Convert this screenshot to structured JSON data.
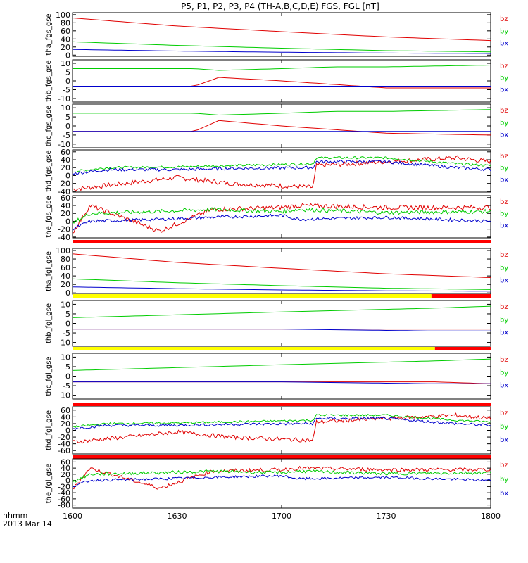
{
  "title": "P5, P1, P2, P3, P4 (TH-A,B,C,D,E) FGS, FGL [nT]",
  "x_axis": {
    "ticks": [
      {
        "label": "1600",
        "t": 0
      },
      {
        "label": "1630",
        "t": 30
      },
      {
        "label": "1700",
        "t": 60
      },
      {
        "label": "1730",
        "t": 90
      },
      {
        "label": "1800",
        "t": 120
      }
    ],
    "unit_label": "hhmm",
    "date_label": "2013 Mar 14"
  },
  "colors": {
    "bz": "#e00000",
    "by": "#00cc00",
    "bx": "#0000cc",
    "flag_red": "#ff0000",
    "flag_yellow": "#ffff00"
  },
  "chart_data": [
    {
      "type": "line",
      "ylabel": "tha_fgs_gse",
      "ylim": [
        -3,
        105
      ],
      "yticks": [
        0,
        20,
        40,
        60,
        80,
        100
      ],
      "legend": [
        "bz",
        "by",
        "bx"
      ],
      "x": [
        0,
        30,
        60,
        90,
        120
      ],
      "series": [
        {
          "name": "bz",
          "values": [
            92,
            72,
            58,
            45,
            36
          ]
        },
        {
          "name": "by",
          "values": [
            33,
            24,
            17,
            11,
            8
          ]
        },
        {
          "name": "bx",
          "values": [
            14,
            10,
            7,
            5,
            4
          ]
        }
      ],
      "flag_bar": null
    },
    {
      "type": "line",
      "ylabel": "thb_fgs_gse",
      "ylim": [
        -12,
        12
      ],
      "yticks": [
        -10,
        -5,
        0,
        5,
        10
      ],
      "legend": [
        "bz",
        "by",
        "bx"
      ],
      "x": [
        0,
        35,
        42,
        60,
        75,
        90,
        120
      ],
      "series": [
        {
          "name": "bz",
          "values": [
            -3,
            -3,
            2,
            0,
            -2,
            -4,
            -4
          ]
        },
        {
          "name": "by",
          "values": [
            7,
            7,
            6,
            7,
            8,
            8,
            9
          ]
        },
        {
          "name": "bx",
          "values": [
            -3,
            -3,
            -3,
            -3,
            -3,
            -3,
            -3
          ]
        }
      ],
      "flag_bar": null
    },
    {
      "type": "line",
      "ylabel": "thc_fgs_gse",
      "ylim": [
        -12,
        12
      ],
      "yticks": [
        -10,
        -5,
        0,
        5,
        10
      ],
      "legend": [
        "bz",
        "by",
        "bx"
      ],
      "x": [
        0,
        35,
        42,
        60,
        75,
        90,
        120
      ],
      "series": [
        {
          "name": "bz",
          "values": [
            -3,
            -3,
            3,
            0,
            -2,
            -4,
            -5
          ]
        },
        {
          "name": "by",
          "values": [
            7,
            7,
            6,
            7,
            8,
            8,
            9
          ]
        },
        {
          "name": "bx",
          "values": [
            -3,
            -3,
            -3,
            -3,
            -3,
            -3,
            -3
          ]
        }
      ],
      "flag_bar": null
    },
    {
      "type": "line",
      "ylabel": "thd_fgs_gse",
      "ylim": [
        -42,
        65
      ],
      "yticks": [
        -40,
        -20,
        0,
        20,
        40,
        60
      ],
      "legend": [
        "bz",
        "by",
        "bx"
      ],
      "x": [
        0,
        10,
        30,
        45,
        69,
        70,
        90,
        110,
        120
      ],
      "series": [
        {
          "name": "bz",
          "values": [
            -35,
            -25,
            -5,
            -20,
            -30,
            25,
            35,
            45,
            35
          ],
          "noise": 6
        },
        {
          "name": "by",
          "values": [
            10,
            20,
            22,
            25,
            30,
            45,
            45,
            30,
            25
          ],
          "noise": 3
        },
        {
          "name": "bx",
          "values": [
            5,
            15,
            15,
            18,
            20,
            35,
            35,
            20,
            15
          ],
          "noise": 4
        }
      ],
      "flag_bar": null
    },
    {
      "type": "line",
      "ylabel": "the_fgs_gse",
      "ylim": [
        -42,
        65
      ],
      "yticks": [
        -40,
        -20,
        0,
        20,
        40,
        60
      ],
      "legend": [
        "bz",
        "by",
        "bx"
      ],
      "x": [
        0,
        5,
        25,
        40,
        60,
        65,
        90,
        120
      ],
      "series": [
        {
          "name": "bz",
          "values": [
            -30,
            40,
            -25,
            30,
            35,
            40,
            35,
            35
          ],
          "noise": 6
        },
        {
          "name": "by",
          "values": [
            -5,
            20,
            25,
            30,
            25,
            30,
            22,
            25
          ],
          "noise": 5
        },
        {
          "name": "bx",
          "values": [
            -20,
            0,
            5,
            10,
            15,
            5,
            10,
            0
          ],
          "noise": 4
        }
      ],
      "flag_bar": [
        {
          "from": 0,
          "to": 120,
          "color": "flag_red"
        }
      ]
    },
    {
      "type": "line",
      "ylabel": "tha_fgl_gse",
      "ylim": [
        -3,
        105
      ],
      "yticks": [
        0,
        20,
        40,
        60,
        80,
        100
      ],
      "legend": [
        "bz",
        "by",
        "bx"
      ],
      "x": [
        0,
        30,
        60,
        90,
        120
      ],
      "series": [
        {
          "name": "bz",
          "values": [
            92,
            72,
            58,
            45,
            36
          ]
        },
        {
          "name": "by",
          "values": [
            33,
            24,
            17,
            11,
            8
          ]
        },
        {
          "name": "bx",
          "values": [
            14,
            10,
            7,
            5,
            4
          ]
        }
      ],
      "flag_bar": [
        {
          "from": 0,
          "to": 103,
          "color": "flag_yellow"
        },
        {
          "from": 103,
          "to": 120,
          "color": "flag_red"
        }
      ]
    },
    {
      "type": "line",
      "ylabel": "thb_fgl_gse",
      "ylim": [
        -12,
        12
      ],
      "yticks": [
        -10,
        -5,
        0,
        5,
        10
      ],
      "legend": [
        "bz",
        "by",
        "bx"
      ],
      "x": [
        0,
        60,
        104,
        120
      ],
      "series": [
        {
          "name": "bz",
          "values": [
            -3,
            -3,
            -3,
            -3
          ]
        },
        {
          "name": "by",
          "values": [
            3,
            6,
            8,
            9
          ]
        },
        {
          "name": "bx",
          "values": [
            -3,
            -3,
            -4,
            -4
          ]
        }
      ],
      "flag_bar": [
        {
          "from": 0,
          "to": 104,
          "color": "flag_yellow"
        },
        {
          "from": 104,
          "to": 120,
          "color": "flag_red"
        }
      ]
    },
    {
      "type": "line",
      "ylabel": "thc_fgl_gse",
      "ylim": [
        -12,
        12
      ],
      "yticks": [
        -10,
        -5,
        0,
        5,
        10
      ],
      "legend": [
        "bz",
        "by",
        "bx"
      ],
      "x": [
        0,
        60,
        104,
        120
      ],
      "series": [
        {
          "name": "bz",
          "values": [
            -3,
            -3,
            -3,
            -4
          ]
        },
        {
          "name": "by",
          "values": [
            3,
            6,
            8,
            9
          ]
        },
        {
          "name": "bx",
          "values": [
            -3,
            -3,
            -4,
            -4
          ]
        }
      ],
      "flag_bar": [
        {
          "from": 0,
          "to": 120,
          "color": "flag_red"
        }
      ]
    },
    {
      "type": "line",
      "ylabel": "thd_fgl_gse",
      "ylim": [
        -70,
        70
      ],
      "yticks": [
        -60,
        -40,
        -20,
        0,
        20,
        40,
        60
      ],
      "legend": [
        "bz",
        "by",
        "bx"
      ],
      "x": [
        0,
        10,
        30,
        45,
        69,
        70,
        90,
        110,
        120
      ],
      "series": [
        {
          "name": "bz",
          "values": [
            -35,
            -25,
            -5,
            -20,
            -30,
            25,
            35,
            45,
            35
          ],
          "noise": 6
        },
        {
          "name": "by",
          "values": [
            10,
            20,
            22,
            25,
            30,
            45,
            45,
            30,
            25
          ],
          "noise": 3
        },
        {
          "name": "bx",
          "values": [
            5,
            15,
            15,
            18,
            20,
            35,
            35,
            20,
            15
          ],
          "noise": 4
        }
      ],
      "flag_bar": [
        {
          "from": 0,
          "to": 120,
          "color": "flag_red"
        }
      ]
    },
    {
      "type": "line",
      "ylabel": "the_fgl_gse",
      "ylim": [
        -90,
        70
      ],
      "yticks": [
        -80,
        -60,
        -40,
        -20,
        0,
        20,
        40,
        60
      ],
      "legend": [
        "bz",
        "by",
        "bx"
      ],
      "x": [
        0,
        5,
        25,
        40,
        60,
        65,
        90,
        120
      ],
      "series": [
        {
          "name": "bz",
          "values": [
            -30,
            40,
            -25,
            30,
            35,
            40,
            35,
            35
          ],
          "noise": 6
        },
        {
          "name": "by",
          "values": [
            -5,
            20,
            25,
            30,
            25,
            30,
            22,
            25
          ],
          "noise": 5
        },
        {
          "name": "bx",
          "values": [
            -20,
            0,
            5,
            10,
            15,
            5,
            10,
            0
          ],
          "noise": 4
        }
      ],
      "flag_bar": null
    }
  ]
}
